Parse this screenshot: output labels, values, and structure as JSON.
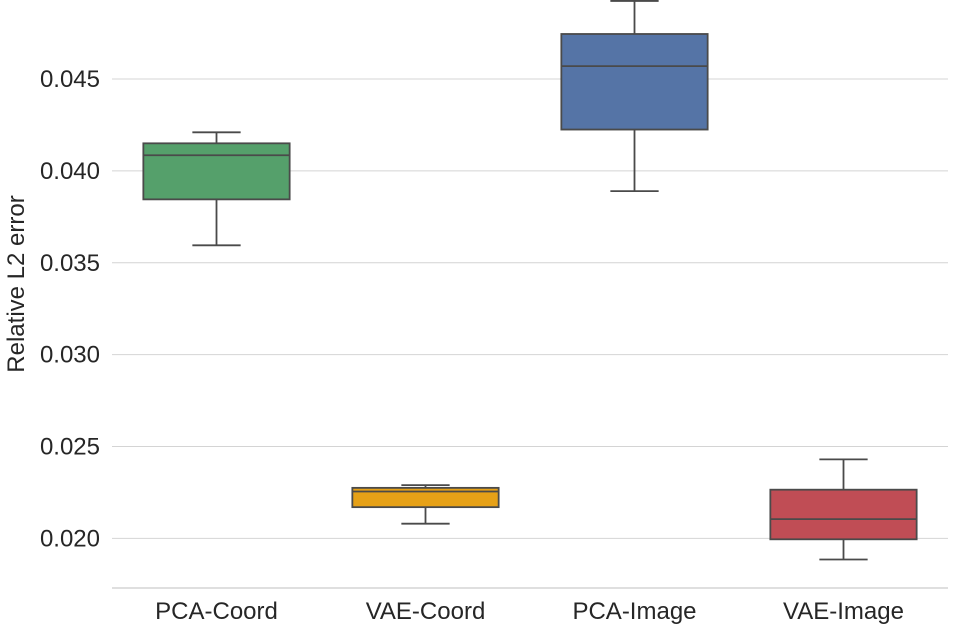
{
  "chart_data": {
    "type": "box",
    "title": "",
    "xlabel": "",
    "ylabel": "Relative L2 error",
    "ylim": [
      0.0173,
      0.0493
    ],
    "yticks": [
      "0.020",
      "0.025",
      "0.030",
      "0.035",
      "0.040",
      "0.045"
    ],
    "grid": "horizontal",
    "categories": [
      "PCA-Coord",
      "VAE-Coord",
      "PCA-Image",
      "VAE-Image"
    ],
    "boxes": [
      {
        "name": "PCA-Coord",
        "color": "#55a06b",
        "whisker_low": 0.03595,
        "q1": 0.03845,
        "median": 0.04085,
        "q3": 0.0415,
        "whisker_high": 0.0421
      },
      {
        "name": "VAE-Coord",
        "color": "#e6a117",
        "whisker_low": 0.0208,
        "q1": 0.0217,
        "median": 0.02255,
        "q3": 0.02275,
        "whisker_high": 0.0229
      },
      {
        "name": "PCA-Image",
        "color": "#5574a6",
        "whisker_low": 0.0389,
        "q1": 0.04225,
        "median": 0.0457,
        "q3": 0.04745,
        "whisker_high": 0.04925
      },
      {
        "name": "VAE-Image",
        "color": "#c04d55",
        "whisker_low": 0.01885,
        "q1": 0.01995,
        "median": 0.02105,
        "q3": 0.02265,
        "whisker_high": 0.0243
      }
    ]
  }
}
